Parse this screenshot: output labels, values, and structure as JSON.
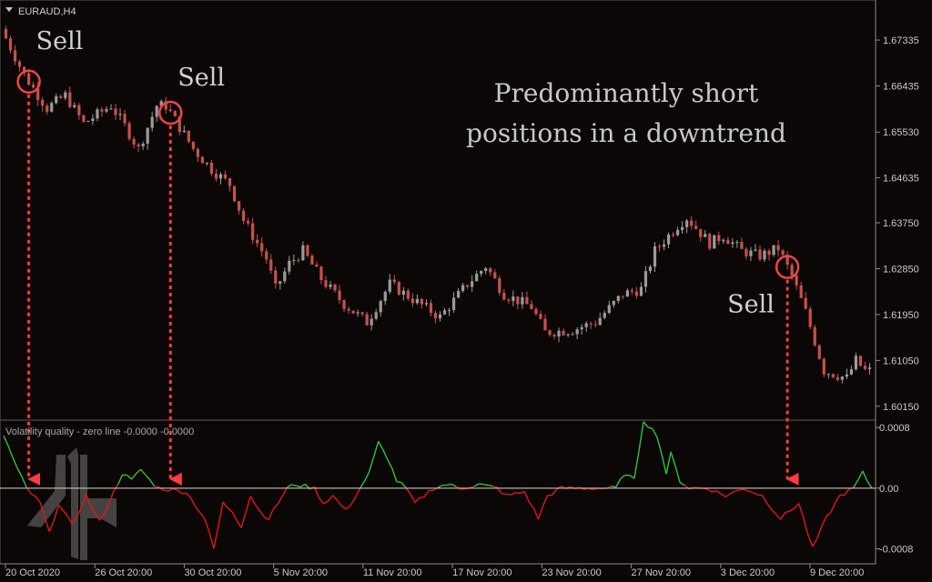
{
  "chart_data": [
    {
      "type": "candlestick",
      "symbol_label": "EURAUD,H4",
      "y_ticks": [
        "1.67335",
        "1.66435",
        "1.65530",
        "1.64635",
        "1.63750",
        "1.62850",
        "1.61950",
        "1.61050",
        "1.60150"
      ],
      "ylim": [
        1.5995,
        1.6805
      ],
      "x_ticks": [
        "20 Oct 2020",
        "26 Oct 20:00",
        "30 Oct 20:00",
        "5 Nov 20:00",
        "11 Nov 20:00",
        "17 Nov 20:00",
        "23 Nov 20:00",
        "27 Nov 20:00",
        "3 Dec 20:00",
        "9 Dec 20:00"
      ],
      "up_color": "#9a9a9a",
      "down_color": "#c9504a",
      "candle_count": 190,
      "key_points": [
        {
          "i": 0,
          "p": 1.6755
        },
        {
          "i": 5,
          "p": 1.6665
        },
        {
          "i": 10,
          "p": 1.66
        },
        {
          "i": 14,
          "p": 1.6625
        },
        {
          "i": 18,
          "p": 1.657
        },
        {
          "i": 24,
          "p": 1.6605
        },
        {
          "i": 27,
          "p": 1.6565
        },
        {
          "i": 30,
          "p": 1.652
        },
        {
          "i": 34,
          "p": 1.6605
        },
        {
          "i": 36,
          "p": 1.6605
        },
        {
          "i": 42,
          "p": 1.652
        },
        {
          "i": 46,
          "p": 1.648
        },
        {
          "i": 50,
          "p": 1.645
        },
        {
          "i": 53,
          "p": 1.638
        },
        {
          "i": 58,
          "p": 1.6305
        },
        {
          "i": 60,
          "p": 1.6245
        },
        {
          "i": 63,
          "p": 1.6295
        },
        {
          "i": 66,
          "p": 1.632
        },
        {
          "i": 70,
          "p": 1.6265
        },
        {
          "i": 75,
          "p": 1.6215
        },
        {
          "i": 80,
          "p": 1.618
        },
        {
          "i": 85,
          "p": 1.6255
        },
        {
          "i": 90,
          "p": 1.6225
        },
        {
          "i": 96,
          "p": 1.619
        },
        {
          "i": 102,
          "p": 1.6255
        },
        {
          "i": 106,
          "p": 1.629
        },
        {
          "i": 110,
          "p": 1.6235
        },
        {
          "i": 116,
          "p": 1.621
        },
        {
          "i": 119,
          "p": 1.616
        },
        {
          "i": 125,
          "p": 1.6165
        },
        {
          "i": 130,
          "p": 1.618
        },
        {
          "i": 136,
          "p": 1.6235
        },
        {
          "i": 140,
          "p": 1.6245
        },
        {
          "i": 143,
          "p": 1.632
        },
        {
          "i": 148,
          "p": 1.637
        },
        {
          "i": 150,
          "p": 1.6385
        },
        {
          "i": 155,
          "p": 1.6335
        },
        {
          "i": 158,
          "p": 1.635
        },
        {
          "i": 162,
          "p": 1.632
        },
        {
          "i": 166,
          "p": 1.631
        },
        {
          "i": 170,
          "p": 1.6325
        },
        {
          "i": 173,
          "p": 1.627
        },
        {
          "i": 176,
          "p": 1.62
        },
        {
          "i": 180,
          "p": 1.6085
        },
        {
          "i": 185,
          "p": 1.607
        },
        {
          "i": 187,
          "p": 1.6105
        },
        {
          "i": 189,
          "p": 1.6085
        }
      ],
      "annotations": [
        {
          "text": "Sell",
          "candle": 5
        },
        {
          "text": "Sell",
          "candle": 36
        },
        {
          "text": "Sell",
          "candle": 171
        }
      ],
      "note_lines": [
        "Predominantly short",
        "positions in a downtrend"
      ]
    },
    {
      "type": "line",
      "indicator_label": "Volatility quality - zero line -0.0000 -0.0000",
      "y_ticks": [
        "0.0008",
        "0.00",
        "-0.0008"
      ],
      "ylim": [
        -0.00095,
        0.00085
      ],
      "zero_line_color": "#d8d8c8",
      "up_color": "#34c234",
      "down_color": "#e41515",
      "key_points": [
        {
          "i": 0,
          "v": 0.0007
        },
        {
          "i": 3,
          "v": 0.00025
        },
        {
          "i": 5,
          "v": 0.0
        },
        {
          "i": 8,
          "v": -0.0002
        },
        {
          "i": 10,
          "v": -0.0006
        },
        {
          "i": 12,
          "v": -0.0002
        },
        {
          "i": 15,
          "v": -0.0005
        },
        {
          "i": 18,
          "v": -0.0001
        },
        {
          "i": 21,
          "v": -0.00045
        },
        {
          "i": 23,
          "v": -0.0002
        },
        {
          "i": 26,
          "v": 0.0002
        },
        {
          "i": 28,
          "v": 0.0001
        },
        {
          "i": 30,
          "v": 0.00025
        },
        {
          "i": 32,
          "v": 0.0001
        },
        {
          "i": 34,
          "v": 0.0
        },
        {
          "i": 40,
          "v": -5e-05
        },
        {
          "i": 44,
          "v": -0.0004
        },
        {
          "i": 46,
          "v": -0.0008
        },
        {
          "i": 48,
          "v": -0.0002
        },
        {
          "i": 50,
          "v": -0.0003
        },
        {
          "i": 52,
          "v": -0.0005
        },
        {
          "i": 54,
          "v": -0.0001
        },
        {
          "i": 56,
          "v": -0.0003
        },
        {
          "i": 58,
          "v": -0.0004
        },
        {
          "i": 60,
          "v": -0.0002
        },
        {
          "i": 62,
          "v": 0.0
        },
        {
          "i": 64,
          "v": 5e-05
        },
        {
          "i": 68,
          "v": 0.0
        },
        {
          "i": 70,
          "v": -0.0002
        },
        {
          "i": 72,
          "v": -0.0001
        },
        {
          "i": 75,
          "v": -0.0003
        },
        {
          "i": 77,
          "v": -0.0001
        },
        {
          "i": 80,
          "v": 0.0002
        },
        {
          "i": 82,
          "v": 0.0006
        },
        {
          "i": 84,
          "v": 0.0004
        },
        {
          "i": 86,
          "v": 0.0001
        },
        {
          "i": 88,
          "v": 0.0
        },
        {
          "i": 90,
          "v": -0.0002
        },
        {
          "i": 92,
          "v": -0.0001
        },
        {
          "i": 94,
          "v": 0.0
        },
        {
          "i": 97,
          "v": 5e-05
        },
        {
          "i": 100,
          "v": 0.0
        },
        {
          "i": 104,
          "v": 5e-05
        },
        {
          "i": 108,
          "v": 0.0
        },
        {
          "i": 110,
          "v": -0.0001
        },
        {
          "i": 114,
          "v": -5e-05
        },
        {
          "i": 117,
          "v": -0.0004
        },
        {
          "i": 119,
          "v": -0.0001
        },
        {
          "i": 122,
          "v": 0.0
        },
        {
          "i": 128,
          "v": 0.0
        },
        {
          "i": 134,
          "v": 0.0
        },
        {
          "i": 136,
          "v": 0.0002
        },
        {
          "i": 138,
          "v": 0.0001
        },
        {
          "i": 140,
          "v": 0.0009
        },
        {
          "i": 143,
          "v": 0.0007
        },
        {
          "i": 145,
          "v": 0.0002
        },
        {
          "i": 146,
          "v": 0.00045
        },
        {
          "i": 148,
          "v": 0.0001
        },
        {
          "i": 150,
          "v": 0.0
        },
        {
          "i": 154,
          "v": 0.0
        },
        {
          "i": 158,
          "v": -0.0001
        },
        {
          "i": 162,
          "v": 0.0
        },
        {
          "i": 166,
          "v": -0.0001
        },
        {
          "i": 170,
          "v": -0.0004
        },
        {
          "i": 172,
          "v": -0.0003
        },
        {
          "i": 174,
          "v": -0.0002
        },
        {
          "i": 177,
          "v": -0.0008
        },
        {
          "i": 180,
          "v": -0.0004
        },
        {
          "i": 183,
          "v": -0.0001
        },
        {
          "i": 186,
          "v": 0.0
        },
        {
          "i": 188,
          "v": 0.0002
        },
        {
          "i": 190,
          "v": 0.0
        }
      ]
    }
  ]
}
